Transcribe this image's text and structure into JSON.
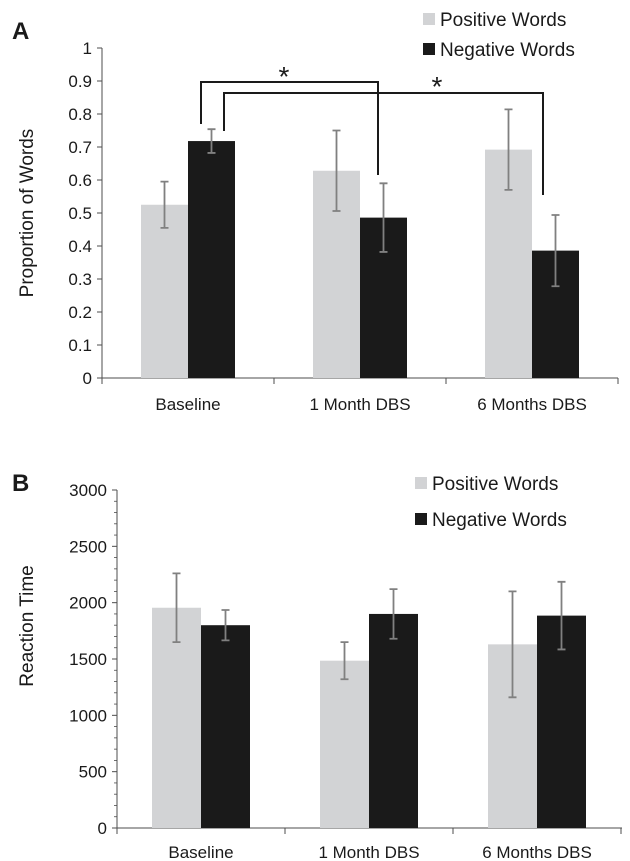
{
  "figure": {
    "panels": [
      {
        "letter": "A"
      },
      {
        "letter": "B"
      }
    ]
  },
  "colors": {
    "positive": "#d2d3d5",
    "negative": "#1a1a1a",
    "error_bar": "#808080",
    "axis": "#4d4d4d"
  },
  "chart_data": [
    {
      "type": "bar",
      "panel": "A",
      "title": "",
      "xlabel": "",
      "ylabel": "Proportion of Words",
      "categories": [
        "Baseline",
        "1 Month DBS",
        "6 Months DBS"
      ],
      "series": [
        {
          "name": "Positive Words",
          "values": [
            0.525,
            0.628,
            0.692
          ],
          "error": [
            0.07,
            0.122,
            0.122
          ]
        },
        {
          "name": "Negative Words",
          "values": [
            0.718,
            0.486,
            0.386
          ],
          "error": [
            0.036,
            0.104,
            0.108
          ]
        }
      ],
      "ylim": [
        0,
        1
      ],
      "yticks": [
        "0",
        "0.1",
        "0.2",
        "0.3",
        "0.4",
        "0.5",
        "0.6",
        "0.7",
        "0.8",
        "0.9",
        "1"
      ],
      "legend_position": "top-right",
      "grid": false,
      "significance": [
        {
          "label": "*",
          "from": "Baseline",
          "to": "1 Month DBS"
        },
        {
          "label": "*",
          "from": "Baseline",
          "to": "6 Months DBS"
        }
      ]
    },
    {
      "type": "bar",
      "panel": "B",
      "title": "",
      "xlabel": "",
      "ylabel": "Reaction Time",
      "categories": [
        "Baseline",
        "1 Month DBS",
        "6 Months DBS"
      ],
      "series": [
        {
          "name": "Positive Words",
          "values": [
            1955,
            1485,
            1630
          ],
          "error": [
            305,
            165,
            470
          ]
        },
        {
          "name": "Negative Words",
          "values": [
            1800,
            1900,
            1885
          ],
          "error": [
            135,
            220,
            300
          ]
        }
      ],
      "ylim": [
        0,
        3000
      ],
      "yticks": [
        "0",
        "500",
        "1000",
        "1500",
        "2000",
        "2500",
        "3000"
      ],
      "legend_position": "top-right",
      "grid": false
    }
  ]
}
